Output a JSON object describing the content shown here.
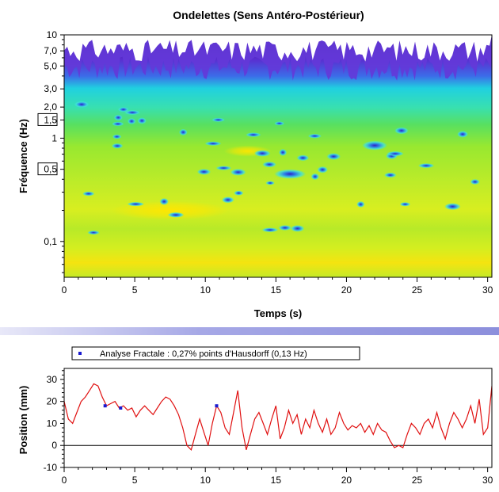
{
  "scalogram": {
    "title": "Ondelettes (Sens Antéro-Postérieur)",
    "xlabel": "Temps (s)",
    "ylabel": "Fréquence (Hz)",
    "x_ticks": [
      "0",
      "5",
      "10",
      "15",
      "20",
      "25",
      "30"
    ],
    "y_ticks": [
      {
        "label": "10",
        "value": 10,
        "boxed": false
      },
      {
        "label": "7,0",
        "value": 7,
        "boxed": false
      },
      {
        "label": "5,0",
        "value": 5,
        "boxed": false
      },
      {
        "label": "3,0",
        "value": 3,
        "boxed": false
      },
      {
        "label": "2,0",
        "value": 2,
        "boxed": false
      },
      {
        "label": "1,5",
        "value": 1.5,
        "boxed": true
      },
      {
        "label": "1",
        "value": 1,
        "boxed": false
      },
      {
        "label": "0,5",
        "value": 0.5,
        "boxed": true
      },
      {
        "label": "0,1",
        "value": 0.1,
        "boxed": false
      }
    ]
  },
  "chart_data": [
    {
      "type": "heatmap",
      "title": "Ondelettes (Sens Antéro-Postérieur)",
      "xlabel": "Temps (s)",
      "ylabel": "Fréquence (Hz)",
      "xlim": [
        0,
        30.3
      ],
      "ylim": [
        0.045,
        10
      ],
      "y_scale": "log",
      "grid": false,
      "color_bands": [
        {
          "freq_range": [
            0.045,
            0.25
          ],
          "level": "yellow-green",
          "color": "#c8ec1a"
        },
        {
          "freq_range": [
            0.25,
            1.0
          ],
          "level": "green-yellow",
          "color": "#9ce82a"
        },
        {
          "freq_range": [
            1.0,
            2.5
          ],
          "level": "green",
          "color": "#4cdc3c"
        },
        {
          "freq_range": [
            2.5,
            4.0
          ],
          "level": "cyan",
          "color": "#22d8d8"
        },
        {
          "freq_range": [
            4.0,
            10
          ],
          "level": "blue-purple",
          "color": "#5030c0"
        }
      ],
      "hot_spots": [
        {
          "t": 7.5,
          "f": 0.2,
          "level": "high",
          "color": "#ffe600"
        },
        {
          "t": 13,
          "f": 0.75,
          "level": "high",
          "color": "#f8dc00"
        },
        {
          "t": 22,
          "f": 0.85,
          "level": "low",
          "color": "#4a3cd8"
        },
        {
          "t": 16,
          "f": 0.45,
          "level": "low",
          "color": "#3a5ae0"
        }
      ]
    },
    {
      "type": "line",
      "xlabel": "",
      "ylabel": "Position (mm)",
      "xlim": [
        0,
        30.3
      ],
      "ylim": [
        -10,
        35
      ],
      "x_ticks": [
        "0",
        "5",
        "10",
        "15",
        "20",
        "25",
        "30"
      ],
      "y_ticks": [
        "30",
        "20",
        "10",
        "0",
        "-10"
      ],
      "grid": false,
      "zero_line": true,
      "legend_position": "top",
      "series": [
        {
          "name": "Analyse Fractale : 0,27% points d'Hausdorff (0,13 Hz)",
          "color": "#e01010",
          "x": [
            0,
            0.3,
            0.6,
            0.9,
            1.2,
            1.5,
            1.8,
            2.1,
            2.4,
            2.7,
            3.0,
            3.3,
            3.6,
            3.9,
            4.2,
            4.5,
            4.8,
            5.1,
            5.4,
            5.7,
            6.0,
            6.3,
            6.6,
            6.9,
            7.2,
            7.5,
            7.8,
            8.1,
            8.4,
            8.7,
            9.0,
            9.3,
            9.6,
            9.9,
            10.2,
            10.5,
            10.8,
            11.1,
            11.4,
            11.7,
            12.0,
            12.3,
            12.6,
            12.9,
            13.2,
            13.5,
            13.8,
            14.1,
            14.4,
            14.7,
            15.0,
            15.3,
            15.6,
            15.9,
            16.2,
            16.5,
            16.8,
            17.1,
            17.4,
            17.7,
            18.0,
            18.3,
            18.6,
            18.9,
            19.2,
            19.5,
            19.8,
            20.1,
            20.4,
            20.7,
            21.0,
            21.3,
            21.6,
            21.9,
            22.2,
            22.5,
            22.8,
            23.1,
            23.4,
            23.7,
            24.0,
            24.3,
            24.6,
            24.9,
            25.2,
            25.5,
            25.8,
            26.1,
            26.4,
            26.7,
            27.0,
            27.3,
            27.6,
            27.9,
            28.2,
            28.5,
            28.8,
            29.1,
            29.4,
            29.7,
            30.0,
            30.3
          ],
          "y": [
            20,
            12,
            10,
            15,
            20,
            22,
            25,
            28,
            27,
            22,
            18,
            19,
            20,
            17,
            18,
            16,
            17,
            13,
            16,
            18,
            16,
            14,
            17,
            20,
            22,
            21,
            18,
            14,
            8,
            0,
            -2,
            5,
            12,
            6,
            0,
            10,
            18,
            15,
            8,
            5,
            15,
            25,
            8,
            -2,
            5,
            12,
            15,
            10,
            5,
            12,
            18,
            3,
            8,
            16,
            10,
            14,
            5,
            12,
            8,
            16,
            10,
            6,
            12,
            5,
            8,
            15,
            10,
            7,
            9,
            8,
            10,
            6,
            9,
            5,
            10,
            7,
            6,
            2,
            -1,
            0,
            -1,
            5,
            10,
            8,
            5,
            10,
            12,
            8,
            15,
            8,
            3,
            10,
            15,
            12,
            8,
            12,
            18,
            10,
            21,
            5,
            8,
            27
          ]
        },
        {
          "name": "points d'Hausdorff",
          "color": "#1a1ad0",
          "x": [
            2.9,
            4.0,
            10.8
          ],
          "y": [
            18,
            17,
            18
          ]
        }
      ]
    }
  ]
}
